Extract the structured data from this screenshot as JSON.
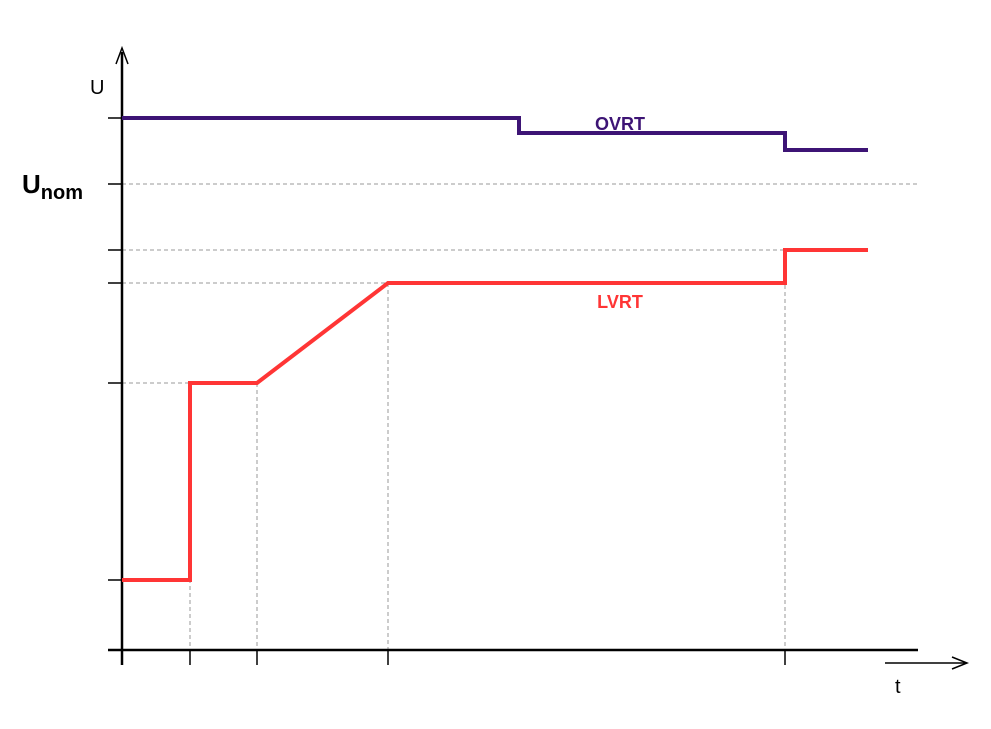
{
  "axes": {
    "y_label": "U",
    "x_label": "t",
    "nominal_label": {
      "main": "U",
      "sub": "nom"
    }
  },
  "curves": {
    "upper": {
      "label": "OVRT"
    },
    "lower": {
      "label": "LVRT"
    }
  }
}
